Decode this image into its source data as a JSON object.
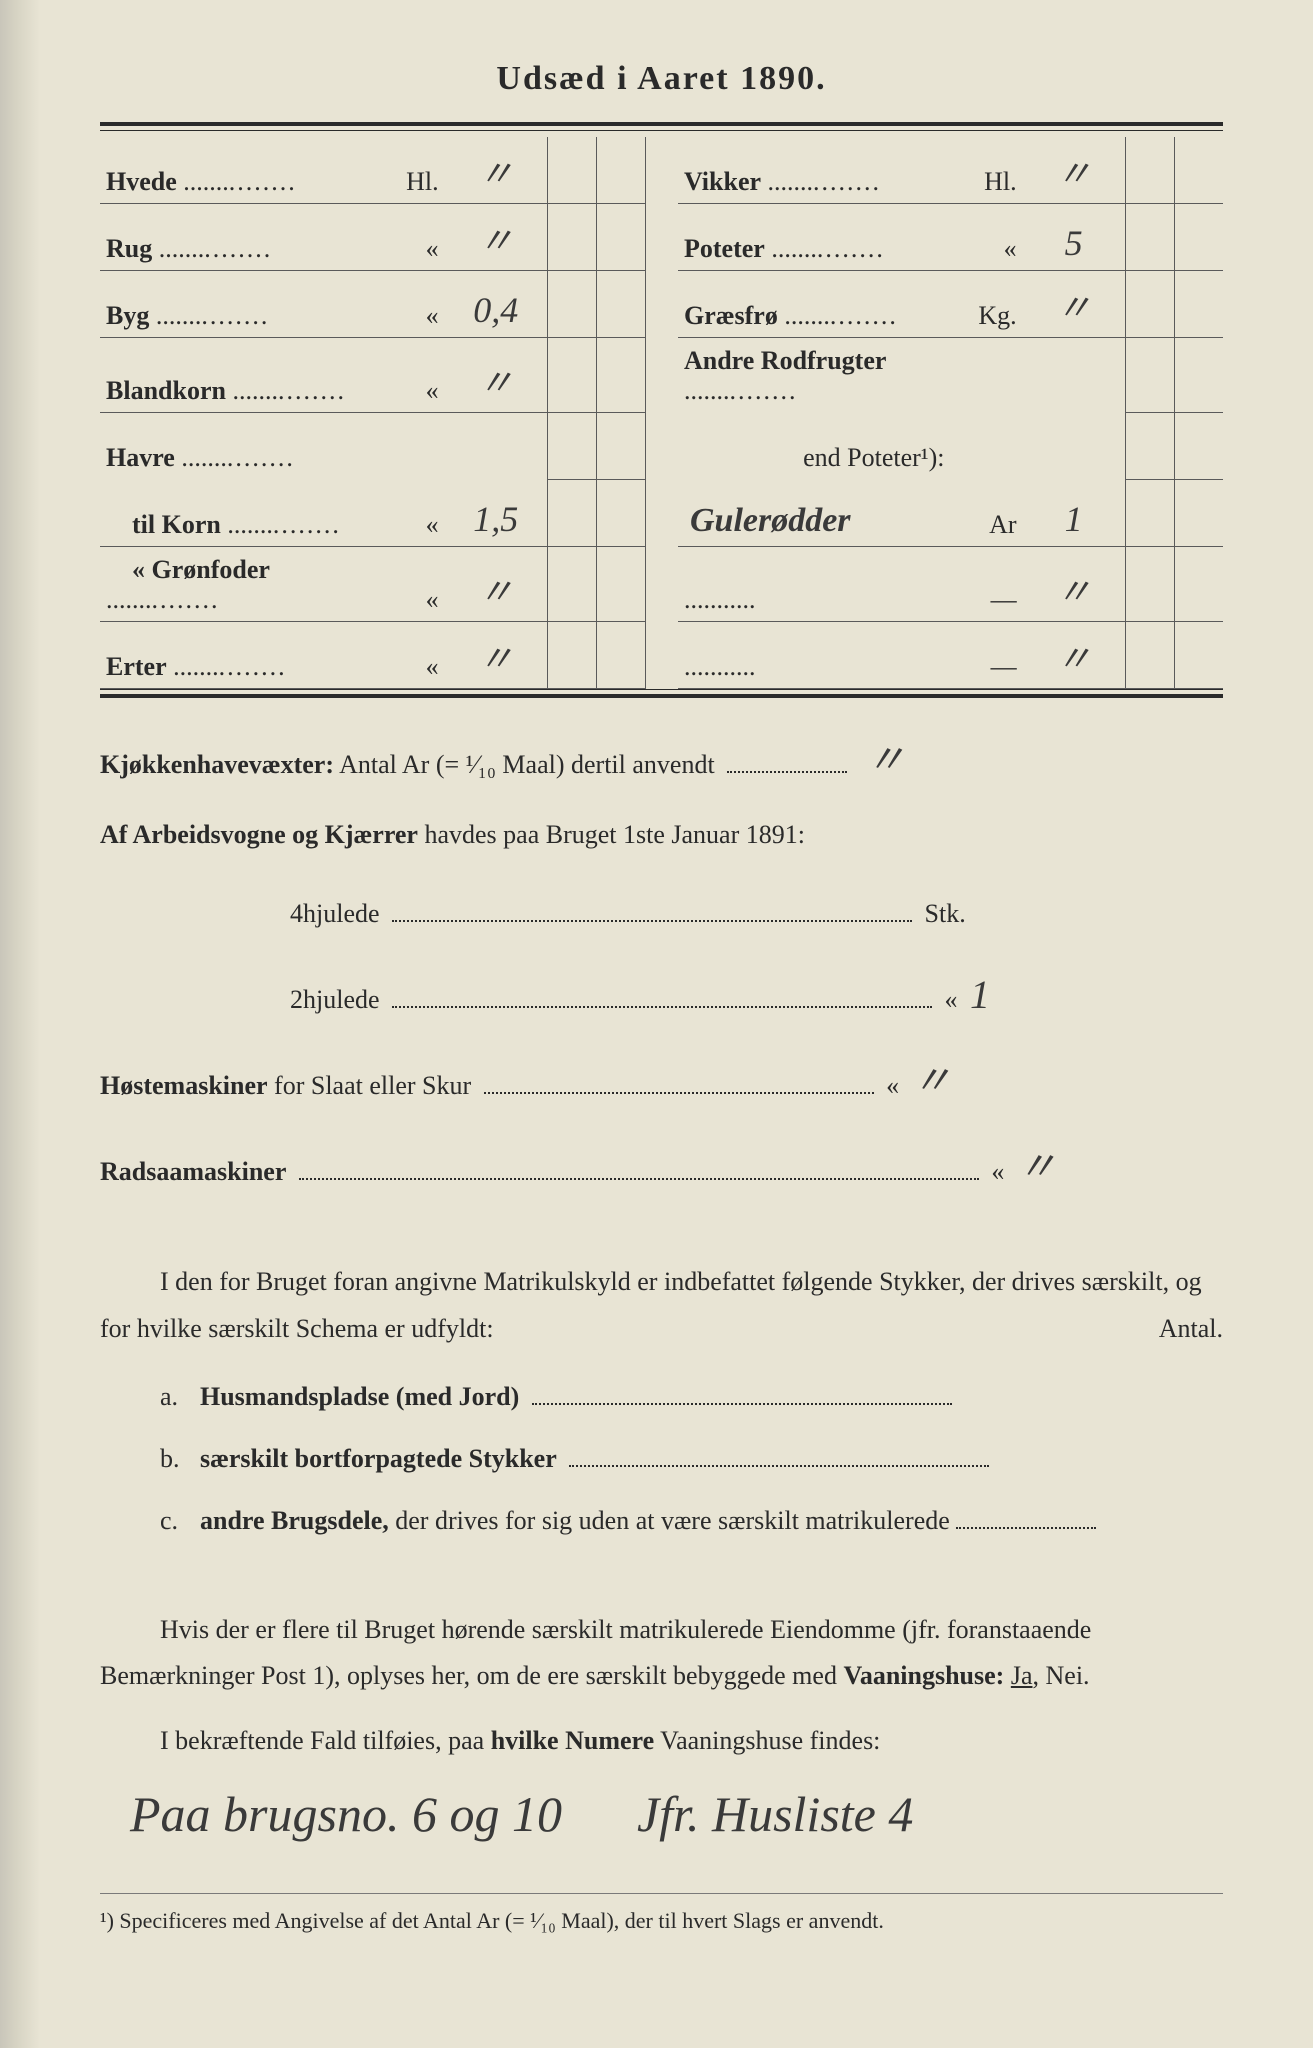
{
  "title": "Udsæd i Aaret 1890.",
  "seed": {
    "left": [
      {
        "label": "Hvede",
        "unit": "Hl.",
        "value": "〃"
      },
      {
        "label": "Rug",
        "unit": "«",
        "value": "〃"
      },
      {
        "label": "Byg",
        "unit": "«",
        "value": "0,4"
      },
      {
        "label": "Blandkorn",
        "unit": "«",
        "value": "〃"
      },
      {
        "label": "Havre",
        "unit": "",
        "value": ""
      },
      {
        "label": "til Korn",
        "unit": "«",
        "value": "1,5",
        "indent": true
      },
      {
        "label": "« Grønfoder",
        "unit": "«",
        "value": "〃",
        "indent": true
      },
      {
        "label": "Erter",
        "unit": "«",
        "value": "〃"
      }
    ],
    "right": [
      {
        "label": "Vikker",
        "unit": "Hl.",
        "value": "〃"
      },
      {
        "label": "Poteter",
        "unit": "«",
        "value": "5"
      },
      {
        "label": "Græsfrø",
        "unit": "Kg.",
        "value": "〃"
      },
      {
        "label": "Andre Rodfrugter",
        "unit": "",
        "value": ""
      },
      {
        "label": "end Poteter¹):",
        "unit": "",
        "value": "",
        "indent": true,
        "plain": true
      },
      {
        "label": "Gulerødder",
        "unit": "Ar",
        "value": "1",
        "hw_label": true
      },
      {
        "label": "...........",
        "unit": "—",
        "value": "〃",
        "plain": true
      },
      {
        "label": "...........",
        "unit": "—",
        "value": "〃",
        "plain": true
      }
    ]
  },
  "kjokken": {
    "label": "Kjøkkenhavevæxter:",
    "text": "Antal Ar (= ¹⁄₁₀ Maal) dertil anvendt",
    "value": "〃"
  },
  "arbeidsvogne": {
    "label": "Af Arbeidsvogne og Kjærrer",
    "text": "havdes paa Bruget 1ste Januar 1891:",
    "hjul4": {
      "label": "4hjulede",
      "unit": "Stk.",
      "value": ""
    },
    "hjul2": {
      "label": "2hjulede",
      "unit": "«",
      "value": "1"
    }
  },
  "hostemaskiner": {
    "label": "Høstemaskiner",
    "text": "for Slaat eller Skur",
    "unit": "«",
    "value": "〃"
  },
  "radsaa": {
    "label": "Radsaamaskiner",
    "unit": "«",
    "value": "〃"
  },
  "matrikul": {
    "para": "I den for Bruget foran angivne Matrikulskyld er indbefattet følgende Stykker, der drives særskilt, og for hvilke særskilt Schema er udfyldt:",
    "antal": "Antal.",
    "items": [
      {
        "tag": "a.",
        "label": "Husmandspladse (med Jord)"
      },
      {
        "tag": "b.",
        "label": "særskilt bortforpagtede Stykker"
      },
      {
        "tag": "c.",
        "label": "andre Brugsdele,",
        "tail": "der drives for sig uden at være særskilt matrikulerede"
      }
    ]
  },
  "vaaningshuse": {
    "para": "Hvis der er flere til Bruget hørende særskilt matrikulerede Eiendomme (jfr. foranstaaende Bemærkninger Post 1), oplyses her, om de ere særskilt bebyggede med",
    "bold": "Vaaningshuse:",
    "choice": "Ja, Nei.",
    "followup_pre": "I bekræftende Fald tilføies, paa",
    "followup_bold": "hvilke Numere",
    "followup_post": "Vaaningshuse findes:",
    "handwritten1": "Paa brugsno. 6 og 10",
    "handwritten2": "Jfr. Husliste 4"
  },
  "footnote": "¹) Specificeres med Angivelse af det Antal Ar (= ¹⁄₁₀ Maal), der til hvert Slags er anvendt.",
  "colors": {
    "paper": "#e8e4d4",
    "ink": "#2a2a2a",
    "handwriting": "#3a3a3a"
  }
}
